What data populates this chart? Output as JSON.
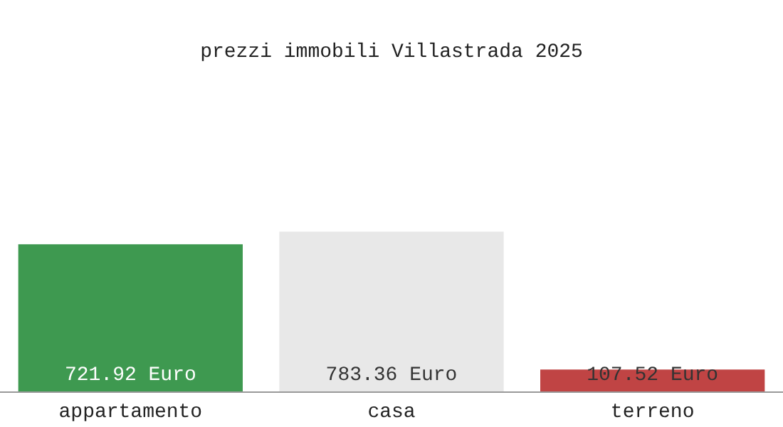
{
  "chart_data": {
    "type": "bar",
    "title": "prezzi immobili Villastrada 2025",
    "categories": [
      "appartamento",
      "casa",
      "terreno"
    ],
    "values": [
      721.92,
      783.36,
      107.52
    ],
    "value_labels": [
      "721.92 Euro",
      "783.36 Euro",
      "107.52 Euro"
    ],
    "colors": [
      "#3e9950",
      "#e8e8e8",
      "#c04444"
    ],
    "legend": false
  }
}
